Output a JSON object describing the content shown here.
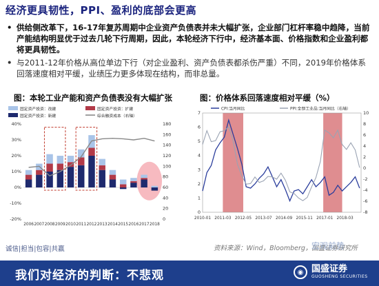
{
  "header": {
    "title": "经济更具韧性，PPI、盈利的底部会更高"
  },
  "bullets": [
    {
      "marker": "•",
      "text": "供给侧改革下，16-17年复苏周期中企业资产负债表并未大幅扩张，企业部门杠杆率稳中趋降，当前产能结构明显优于过去几轮下行周期，因此，本轮经济下行中，经济基本面、价格指数和企业盈利都将更具韧性。"
    },
    {
      "marker": "•",
      "text": "与2011-12年价格从高位单边下行（对企业盈利、资产负债表都杀伤严重）不同，2019年价格体系回落速度相对平缓，业绩压力更多体现在结构，而非总量。"
    }
  ],
  "left_panel": {
    "title": "图：本轮工业产能和资产负债表没有大幅扩张"
  },
  "right_panel": {
    "title": "图：价格体系回落速度相对平缓（%）"
  },
  "footer": {
    "source": "资料来源：Wind，Bloomberg，国盛证券研究所",
    "tags": "诚信|担当|包容|共赢",
    "banner": "我们对经济的判断：不悲观",
    "logo_main": "国盛证券",
    "logo_sub": "GUOSHENG SECURITIES",
    "watermark": "宏观前势"
  },
  "colors": {
    "navy": "#1e2a6e",
    "light_blue": "#a9c4e8",
    "red_bar": "#b23a48",
    "gray_line": "#888888",
    "cpi": "#2a3d9c",
    "ppi": "#9aa3b3",
    "shade": "#d9797c",
    "banner": "#1e3f8c"
  },
  "chart_data": [
    {
      "type": "bar",
      "categories": [
        "2006",
        "2007",
        "2008",
        "2009",
        "2010",
        "2011",
        "2012",
        "2013",
        "2014",
        "2015",
        "2016",
        "2017",
        "2018"
      ],
      "legend": [
        "固定资产投资：改建",
        "固定资产投资：扩建",
        "固定资产投资：新建",
        "综合融资成本（右轴）"
      ],
      "series": [
        {
          "name": "固定资产投资：改建",
          "values": [
            3,
            4,
            6,
            5,
            4,
            5,
            8,
            4,
            3,
            3,
            2,
            2,
            1
          ]
        },
        {
          "name": "固定资产投资：扩建",
          "values": [
            3,
            3,
            5,
            4,
            3,
            5,
            5,
            3,
            3,
            2,
            1,
            1,
            0
          ]
        },
        {
          "name": "固定资产投资：新建",
          "values": [
            5,
            8,
            10,
            11,
            13,
            14,
            20,
            11,
            5,
            -1,
            3,
            5,
            -2
          ]
        },
        {
          "name": "综合融资成本（右轴）",
          "values": [
            98,
            100,
            82,
            90,
            102,
            118,
            148,
            152,
            153,
            152,
            150,
            153,
            148
          ]
        }
      ],
      "yticks_left": [
        "40%",
        "30%",
        "20%",
        "10%",
        "0%",
        "-10%",
        "-20%"
      ],
      "ylim_left": [
        -20,
        40
      ],
      "yticks_right": [
        "180",
        "160",
        "140",
        "120",
        "100",
        "80",
        "60",
        "40",
        "20",
        "0"
      ],
      "ylim_right": [
        0,
        180
      ],
      "highlight_boxes": [
        [
          "2008",
          "2009"
        ],
        [
          "2011",
          "2012"
        ]
      ],
      "highlight_circle": [
        "2017",
        "2018"
      ]
    },
    {
      "type": "line",
      "x_ticks": [
        "2010-01",
        "2011-03",
        "2012-05",
        "2013-07",
        "2014-09",
        "2015-11",
        "2017-01",
        "2018-03"
      ],
      "legend": [
        "CPI:当月同比",
        "PPI:全部工业品:当月同比（右轴）"
      ],
      "yticks_left": [
        "7",
        "6",
        "5",
        "4",
        "3",
        "2",
        "1",
        "0"
      ],
      "ylim_left": [
        0,
        7
      ],
      "yticks_right": [
        "10",
        "8",
        "6",
        "4",
        "2",
        "0",
        "-2",
        "-4",
        "-6",
        "-8"
      ],
      "ylim_right": [
        -8,
        10
      ],
      "shaded_periods": [
        [
          "2011-03",
          "2012-05"
        ],
        [
          "2016-12",
          "2018-01"
        ]
      ],
      "series": [
        {
          "name": "CPI:当月同比",
          "axis": "left",
          "x": [
            "2010-01",
            "2010-04",
            "2010-07",
            "2010-10",
            "2011-01",
            "2011-04",
            "2011-07",
            "2011-10",
            "2012-01",
            "2012-04",
            "2012-07",
            "2012-10",
            "2013-01",
            "2013-04",
            "2013-07",
            "2013-10",
            "2014-01",
            "2014-04",
            "2014-07",
            "2014-10",
            "2015-01",
            "2015-04",
            "2015-07",
            "2015-10",
            "2016-01",
            "2016-04",
            "2016-07",
            "2016-10",
            "2017-01",
            "2017-04",
            "2017-07",
            "2017-10",
            "2018-01",
            "2018-04",
            "2018-07",
            "2018-10",
            "2019-01"
          ],
          "values": [
            1.5,
            2.8,
            3.3,
            4.4,
            4.9,
            5.3,
            6.5,
            5.5,
            4.5,
            3.4,
            1.8,
            1.7,
            2.0,
            2.4,
            2.7,
            3.2,
            2.5,
            1.8,
            2.3,
            1.6,
            0.8,
            1.5,
            1.6,
            1.3,
            1.8,
            2.3,
            1.8,
            2.1,
            2.5,
            1.2,
            1.4,
            1.9,
            1.5,
            1.8,
            2.1,
            2.5,
            1.7
          ]
        },
        {
          "name": "PPI:全部工业品:当月同比（右轴）",
          "axis": "right",
          "x": [
            "2010-01",
            "2010-04",
            "2010-07",
            "2010-10",
            "2011-01",
            "2011-04",
            "2011-07",
            "2011-10",
            "2012-01",
            "2012-04",
            "2012-07",
            "2012-10",
            "2013-01",
            "2013-04",
            "2013-07",
            "2013-10",
            "2014-01",
            "2014-04",
            "2014-07",
            "2014-10",
            "2015-01",
            "2015-04",
            "2015-07",
            "2015-10",
            "2016-01",
            "2016-04",
            "2016-07",
            "2016-10",
            "2017-01",
            "2017-04",
            "2017-07",
            "2017-10",
            "2018-01",
            "2018-04",
            "2018-07",
            "2018-10",
            "2019-01"
          ],
          "values": [
            4.3,
            6.8,
            4.8,
            5.0,
            6.6,
            6.8,
            7.5,
            5.0,
            0.7,
            -1.4,
            -2.9,
            -2.8,
            -1.6,
            -2.6,
            -2.3,
            -1.5,
            -1.6,
            -2.0,
            -0.9,
            -2.2,
            -4.3,
            -4.6,
            -5.4,
            -5.9,
            -5.3,
            -3.4,
            -1.7,
            1.2,
            6.9,
            6.4,
            5.5,
            6.9,
            4.3,
            3.4,
            4.6,
            3.3,
            0.1
          ]
        }
      ]
    }
  ]
}
